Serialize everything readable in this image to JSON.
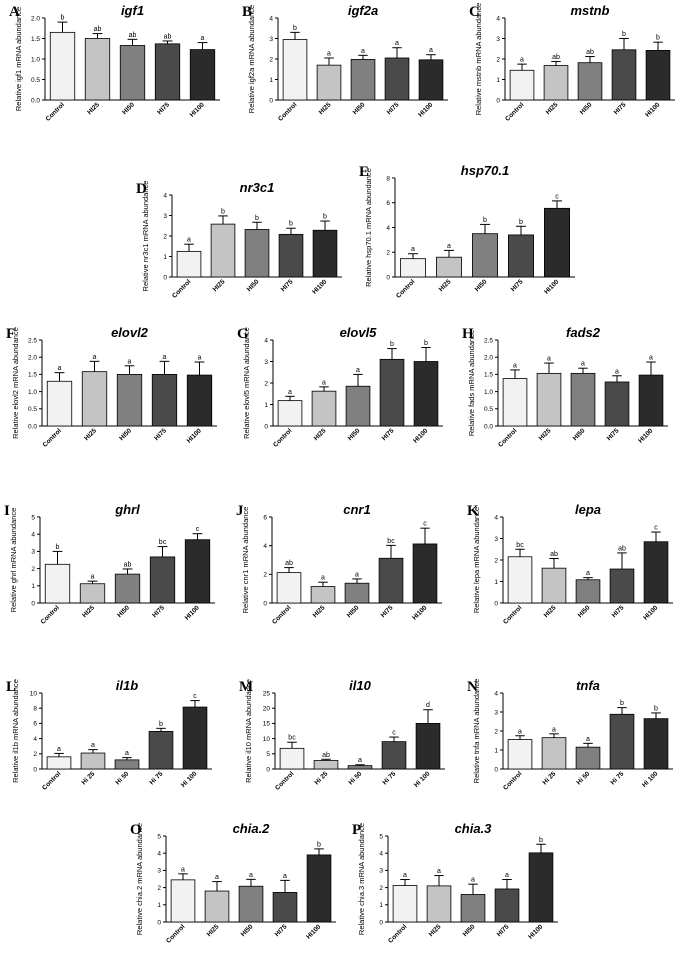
{
  "figure": {
    "bar_colors": [
      "#f2f2f2",
      "#c4c4c4",
      "#808080",
      "#4a4a4a",
      "#2b2b2b"
    ]
  },
  "chart_data": [
    {
      "panel": "A",
      "gene": "igf1",
      "type": "bar",
      "ylabel": "Relative igf1 mRNA abundance",
      "ylim": [
        0,
        2.0
      ],
      "yticks": [
        "0.0",
        "0.5",
        "1.0",
        "1.5",
        "2.0"
      ],
      "categories": [
        "Control",
        "HI25",
        "HI50",
        "HI75",
        "HI100"
      ],
      "values": [
        1.65,
        1.5,
        1.33,
        1.37,
        1.23
      ],
      "errors": [
        0.25,
        0.12,
        0.15,
        0.07,
        0.17
      ],
      "letters": [
        "b",
        "ab",
        "ab",
        "ab",
        "a"
      ]
    },
    {
      "panel": "B",
      "gene": "igf2a",
      "type": "bar",
      "ylabel": "Relative igf2a mRNA abundance",
      "ylim": [
        0,
        4
      ],
      "yticks": [
        "0",
        "1",
        "2",
        "3",
        "4"
      ],
      "categories": [
        "Control",
        "HI25",
        "HI50",
        "HI75",
        "HI100"
      ],
      "values": [
        2.95,
        1.7,
        1.98,
        2.05,
        1.96
      ],
      "errors": [
        0.35,
        0.35,
        0.2,
        0.5,
        0.25
      ],
      "letters": [
        "b",
        "a",
        "a",
        "a",
        "a"
      ]
    },
    {
      "panel": "C",
      "gene": "mstnb",
      "type": "bar",
      "ylabel": "Relative mstnb mRNA abundance",
      "ylim": [
        0,
        4
      ],
      "yticks": [
        "0",
        "1",
        "2",
        "3",
        "4"
      ],
      "categories": [
        "Control",
        "HI25",
        "HI50",
        "HI75",
        "HI100"
      ],
      "values": [
        1.45,
        1.68,
        1.82,
        2.45,
        2.42
      ],
      "errors": [
        0.3,
        0.2,
        0.3,
        0.55,
        0.4
      ],
      "letters": [
        "a",
        "ab",
        "ab",
        "b",
        "b"
      ]
    },
    {
      "panel": "D",
      "gene": "nr3c1",
      "type": "bar",
      "ylabel": "Relative nr3c1 mRNA abundance",
      "ylim": [
        0,
        4
      ],
      "yticks": [
        "0",
        "1",
        "2",
        "3",
        "4"
      ],
      "categories": [
        "Control",
        "HI25",
        "HI50",
        "HI75",
        "HI100"
      ],
      "values": [
        1.25,
        2.58,
        2.32,
        2.08,
        2.28
      ],
      "errors": [
        0.35,
        0.4,
        0.35,
        0.3,
        0.45
      ],
      "letters": [
        "a",
        "b",
        "b",
        "b",
        "b"
      ]
    },
    {
      "panel": "E",
      "gene": "hsp70.1",
      "type": "bar",
      "ylabel": "Relative hsp70.1 mRNA abundance",
      "ylim": [
        0,
        8
      ],
      "yticks": [
        "0",
        "2",
        "4",
        "6",
        "8"
      ],
      "categories": [
        "Control",
        "HI25",
        "HI50",
        "HI75",
        "HI100"
      ],
      "values": [
        1.48,
        1.6,
        3.5,
        3.4,
        5.55
      ],
      "errors": [
        0.4,
        0.55,
        0.75,
        0.7,
        0.6
      ],
      "letters": [
        "a",
        "a",
        "b",
        "b",
        "c"
      ]
    },
    {
      "panel": "F",
      "gene": "elovl2",
      "type": "bar",
      "ylabel": "Relative elovl2 mRNA abundance",
      "ylim": [
        0,
        2.5
      ],
      "yticks": [
        "0.0",
        "0.5",
        "1.0",
        "1.5",
        "2.0",
        "2.5"
      ],
      "categories": [
        "Control",
        "HI25",
        "HI50",
        "HI75",
        "HI100"
      ],
      "values": [
        1.3,
        1.58,
        1.5,
        1.5,
        1.48
      ],
      "errors": [
        0.25,
        0.3,
        0.25,
        0.38,
        0.38
      ],
      "letters": [
        "a",
        "a",
        "a",
        "a",
        "a"
      ]
    },
    {
      "panel": "G",
      "gene": "elovl5",
      "type": "bar",
      "ylabel": "Relative elovl5 mRNA abundance",
      "ylim": [
        0,
        4
      ],
      "yticks": [
        "0",
        "1",
        "2",
        "3",
        "4"
      ],
      "categories": [
        "Control",
        "HI25",
        "HI50",
        "HI75",
        "HI100"
      ],
      "values": [
        1.18,
        1.62,
        1.85,
        3.1,
        3.0
      ],
      "errors": [
        0.2,
        0.2,
        0.55,
        0.5,
        0.65
      ],
      "letters": [
        "a",
        "a",
        "a",
        "b",
        "b"
      ]
    },
    {
      "panel": "H",
      "gene": "fads2",
      "type": "bar",
      "ylabel": "Relative fads mRNA abundance",
      "ylim": [
        0,
        2.5
      ],
      "yticks": [
        "0.0",
        "0.5",
        "1.0",
        "1.5",
        "2.0",
        "2.5"
      ],
      "categories": [
        "Control",
        "HI25",
        "HI50",
        "HI75",
        "HI100"
      ],
      "values": [
        1.38,
        1.53,
        1.53,
        1.28,
        1.48
      ],
      "errors": [
        0.25,
        0.3,
        0.15,
        0.18,
        0.38
      ],
      "letters": [
        "a",
        "a",
        "a",
        "a",
        "a"
      ]
    },
    {
      "panel": "I",
      "gene": "ghrl",
      "type": "bar",
      "ylabel": "Relative ghrl mRNA abundance",
      "ylim": [
        0,
        5
      ],
      "yticks": [
        "0",
        "1",
        "2",
        "3",
        "4",
        "5"
      ],
      "categories": [
        "Control",
        "HI25",
        "HI50",
        "HI75",
        "HI100"
      ],
      "values": [
        2.25,
        1.12,
        1.68,
        2.68,
        3.68
      ],
      "errors": [
        0.75,
        0.15,
        0.3,
        0.6,
        0.35
      ],
      "letters": [
        "b",
        "a",
        "ab",
        "bc",
        "c"
      ]
    },
    {
      "panel": "J",
      "gene": "cnr1",
      "type": "bar",
      "ylabel": "Relative cnr1 mRNA abundance",
      "ylim": [
        0,
        6
      ],
      "yticks": [
        "0",
        "2",
        "4",
        "6"
      ],
      "categories": [
        "Control",
        "HI25",
        "HI50",
        "HI75",
        "HI100"
      ],
      "values": [
        2.12,
        1.15,
        1.38,
        3.12,
        4.12
      ],
      "errors": [
        0.35,
        0.3,
        0.3,
        0.9,
        1.1
      ],
      "letters": [
        "ab",
        "a",
        "a",
        "bc",
        "c"
      ]
    },
    {
      "panel": "K",
      "gene": "lepa",
      "type": "bar",
      "ylabel": "Relative lepa mRNA abundance",
      "ylim": [
        0,
        4
      ],
      "yticks": [
        "0",
        "1",
        "2",
        "3",
        "4"
      ],
      "categories": [
        "Control",
        "HI25",
        "HI50",
        "HI75",
        "HI100"
      ],
      "values": [
        2.15,
        1.62,
        1.08,
        1.58,
        2.85
      ],
      "errors": [
        0.35,
        0.45,
        0.1,
        0.75,
        0.45
      ],
      "letters": [
        "bc",
        "ab",
        "a",
        "ab",
        "c"
      ]
    },
    {
      "panel": "L",
      "gene": "il1b",
      "type": "bar",
      "ylabel": "Relative il1b mRNA abundance",
      "ylim": [
        0,
        10
      ],
      "yticks": [
        "0",
        "2",
        "4",
        "6",
        "8",
        "10"
      ],
      "categories": [
        "Control",
        "Hi 25",
        "Hi 50",
        "Hi 75",
        "Hi 100"
      ],
      "values": [
        1.6,
        2.1,
        1.2,
        4.95,
        8.15
      ],
      "errors": [
        0.45,
        0.45,
        0.3,
        0.4,
        0.85
      ],
      "letters": [
        "a",
        "a",
        "a",
        "b",
        "c"
      ]
    },
    {
      "panel": "M",
      "gene": "il10",
      "type": "bar",
      "ylabel": "Relative il10 mRNA abundance",
      "ylim": [
        0,
        25
      ],
      "yticks": [
        "0",
        "5",
        "10",
        "15",
        "20",
        "25"
      ],
      "categories": [
        "Control",
        "Hi 25",
        "Hi 50",
        "Hi 75",
        "Hi 100"
      ],
      "values": [
        6.8,
        2.8,
        1.1,
        9.0,
        15.0
      ],
      "errors": [
        2.0,
        0.4,
        0.3,
        1.5,
        4.5
      ],
      "letters": [
        "bc",
        "ab",
        "a",
        "c",
        "d"
      ]
    },
    {
      "panel": "N",
      "gene": "tnfa",
      "type": "bar",
      "ylabel": "Relative tnfa mRNA abundance",
      "ylim": [
        0,
        4
      ],
      "yticks": [
        "0",
        "1",
        "2",
        "3",
        "4"
      ],
      "categories": [
        "Control",
        "Hi 25",
        "Hi 50",
        "Hi 75",
        "Hi 100"
      ],
      "values": [
        1.55,
        1.65,
        1.15,
        2.88,
        2.65
      ],
      "errors": [
        0.2,
        0.2,
        0.2,
        0.35,
        0.3
      ],
      "letters": [
        "a",
        "a",
        "a",
        "b",
        "b"
      ]
    },
    {
      "panel": "O",
      "gene": "chia.2",
      "type": "bar",
      "ylabel": "Relative chia.2 mRNA abundance",
      "ylim": [
        0,
        5
      ],
      "yticks": [
        "0",
        "1",
        "2",
        "3",
        "4",
        "5"
      ],
      "categories": [
        "Control",
        "HI25",
        "HI50",
        "HI75",
        "HI100"
      ],
      "values": [
        2.45,
        1.8,
        2.08,
        1.72,
        3.9
      ],
      "errors": [
        0.35,
        0.55,
        0.4,
        0.7,
        0.35
      ],
      "letters": [
        "a",
        "a",
        "a",
        "a",
        "b"
      ]
    },
    {
      "panel": "P",
      "gene": "chia.3",
      "type": "bar",
      "ylabel": "Relative chia.3 mRNA abundance",
      "ylim": [
        0,
        5
      ],
      "yticks": [
        "0",
        "1",
        "2",
        "3",
        "4",
        "5"
      ],
      "categories": [
        "Control",
        "HI25",
        "HI50",
        "HI75",
        "HI100"
      ],
      "values": [
        2.12,
        2.1,
        1.6,
        1.92,
        4.02
      ],
      "errors": [
        0.35,
        0.6,
        0.6,
        0.55,
        0.5
      ],
      "letters": [
        "a",
        "a",
        "a",
        "a",
        "b"
      ]
    }
  ]
}
